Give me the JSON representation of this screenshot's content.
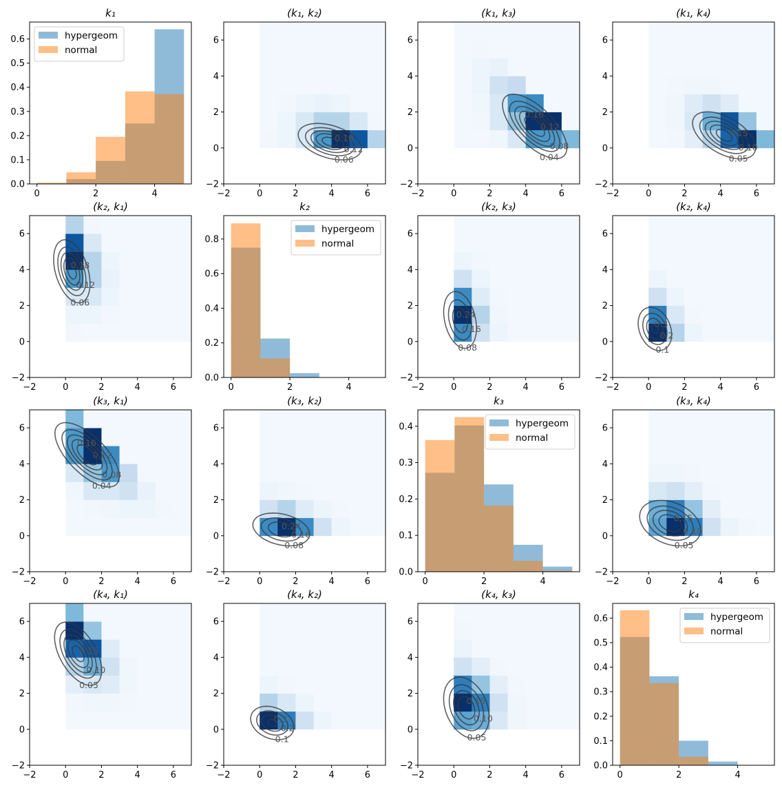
{
  "chart_data": {
    "type": "pairplot",
    "variables": [
      "k1",
      "k2",
      "k3",
      "k4"
    ],
    "legend": [
      "hypergeom",
      "normal"
    ],
    "colors": {
      "hypergeom": "#1f77b4",
      "normal": "#ff7f0e",
      "contour": "#3a3a3a",
      "frame": "#000000"
    },
    "colormap": [
      "#f7fbff",
      "#deebf7",
      "#c6dbef",
      "#9ecae1",
      "#6baed6",
      "#4292c6",
      "#2171b5",
      "#08519c",
      "#08306b"
    ],
    "titles": [
      [
        "k₁",
        "(k₁, k₂)",
        "(k₁, k₃)",
        "(k₁, k₄)"
      ],
      [
        "(k₂, k₁)",
        "k₂",
        "(k₂, k₃)",
        "(k₂, k₄)"
      ],
      [
        "(k₃, k₁)",
        "(k₃, k₂)",
        "k₃",
        "(k₃, k₄)"
      ],
      [
        "(k₄, k₁)",
        "(k₄, k₂)",
        "(k₄, k₃)",
        "k₄"
      ]
    ],
    "histograms": [
      {
        "bin_edges": [
          0,
          1,
          2,
          3,
          4,
          5
        ],
        "hypergeom": [
          0.002,
          0.02,
          0.095,
          0.25,
          0.64
        ],
        "normal": [
          0.005,
          0.048,
          0.195,
          0.383,
          0.372
        ],
        "xlim": [
          -0.25,
          5.25
        ],
        "ylim": [
          0,
          0.67
        ],
        "xticks": [
          "0",
          "2",
          "4"
        ],
        "yticks": [
          "0.0",
          "0.1",
          "0.2",
          "0.3",
          "0.4",
          "0.5",
          "0.6"
        ],
        "legend_loc": "upper left"
      },
      {
        "bin_edges": [
          0,
          1,
          2,
          3,
          4,
          5
        ],
        "hypergeom": [
          0.75,
          0.225,
          0.025,
          0,
          0
        ],
        "normal": [
          0.89,
          0.11,
          0,
          0,
          0
        ],
        "xlim": [
          -0.25,
          5.25
        ],
        "ylim": [
          0,
          0.935
        ],
        "xticks": [
          "0",
          "2",
          "4"
        ],
        "yticks": [
          "0.0",
          "0.2",
          "0.4",
          "0.6",
          "0.8"
        ],
        "legend_loc": "upper right"
      },
      {
        "bin_edges": [
          0,
          1,
          2,
          3,
          4,
          5
        ],
        "hypergeom": [
          0.272,
          0.402,
          0.24,
          0.074,
          0.014
        ],
        "normal": [
          0.362,
          0.425,
          0.182,
          0.03,
          0.003
        ],
        "xlim": [
          -0.25,
          5.25
        ],
        "ylim": [
          0,
          0.445
        ],
        "xticks": [
          "0",
          "2",
          "4"
        ],
        "yticks": [
          "0.0",
          "0.1",
          "0.2",
          "0.3",
          "0.4"
        ],
        "legend_loc": "upper right"
      },
      {
        "bin_edges": [
          0,
          1,
          2,
          3,
          4,
          5
        ],
        "hypergeom": [
          0.523,
          0.363,
          0.1,
          0.015,
          0
        ],
        "normal": [
          0.632,
          0.335,
          0.035,
          0,
          0
        ],
        "xlim": [
          -0.25,
          5.25
        ],
        "ylim": [
          0,
          0.66
        ],
        "xticks": [
          "0",
          "2",
          "4"
        ],
        "yticks": [
          "0.0",
          "0.1",
          "0.2",
          "0.3",
          "0.4",
          "0.5",
          "0.6"
        ],
        "legend_loc": "upper right"
      }
    ],
    "pair_xlim": [
      -2,
      7
    ],
    "pair_ylim": [
      -2,
      7
    ],
    "pair_ticks": [
      "−2",
      "0",
      "2",
      "4",
      "6"
    ],
    "pairs": {
      "k1,k2": {
        "heatmap": [
          [
            0.03,
            0.05,
            0.15,
            0.6,
            1.0,
            0.85,
            0.3
          ],
          [
            0.02,
            0.05,
            0.15,
            0.3,
            0.3,
            0.15,
            0.03
          ],
          [
            0.02,
            0.03,
            0.05,
            0.07,
            0.05,
            0.02,
            0.02
          ],
          [
            0.02,
            0.02,
            0.02,
            0.02,
            0.02,
            0.02,
            0.02
          ],
          [
            0.02,
            0.02,
            0.02,
            0.02,
            0.02,
            0.02,
            0.02
          ],
          [
            0.02,
            0.02,
            0.02,
            0.02,
            0.02,
            0.02,
            0.02
          ],
          [
            0.02,
            0.02,
            0.02,
            0.02,
            0.02,
            0.02,
            0.02
          ]
        ],
        "normal": {
          "mean": [
            3.9,
            0.35
          ],
          "cov": [
            [
              0.9,
              -0.2
            ],
            [
              -0.2,
              0.3
            ]
          ]
        },
        "levels": [
          0.06,
          0.12,
          0.18,
          0.24,
          0.3
        ],
        "labels": [
          "0.06",
          "0.12",
          "0.18"
        ]
      },
      "k1,k3": {
        "heatmap": [
          [
            0.02,
            0.02,
            0.04,
            0.15,
            0.6,
            0.6,
            0.45
          ],
          [
            0.02,
            0.03,
            0.15,
            0.4,
            1.0,
            1.0,
            0.02
          ],
          [
            0.02,
            0.04,
            0.15,
            0.6,
            0.65,
            0.02,
            0.02
          ],
          [
            0.02,
            0.05,
            0.2,
            0.25,
            0.02,
            0.02,
            0.02
          ],
          [
            0.02,
            0.05,
            0.07,
            0.02,
            0.02,
            0.02,
            0.02
          ],
          [
            0.02,
            0.03,
            0.02,
            0.02,
            0.02,
            0.02,
            0.02
          ],
          [
            0.02,
            0.02,
            0.02,
            0.02,
            0.02,
            0.02,
            0.02
          ]
        ],
        "normal": {
          "mean": [
            4.5,
            1.2
          ],
          "cov": [
            [
              0.9,
              -0.6
            ],
            [
              -0.6,
              0.9
            ]
          ]
        },
        "levels": [
          0.04,
          0.08,
          0.12,
          0.16,
          0.2
        ],
        "labels": [
          "0.04",
          "0.08",
          "0.12",
          "0.16"
        ]
      },
      "k1,k4": {
        "heatmap": [
          [
            0.02,
            0.03,
            0.1,
            0.3,
            0.8,
            1.0,
            0.45
          ],
          [
            0.02,
            0.04,
            0.15,
            0.5,
            0.85,
            0.4,
            0.02
          ],
          [
            0.02,
            0.04,
            0.12,
            0.2,
            0.12,
            0.02,
            0.02
          ],
          [
            0.02,
            0.03,
            0.04,
            0.04,
            0.02,
            0.02,
            0.02
          ],
          [
            0.02,
            0.02,
            0.02,
            0.02,
            0.02,
            0.02,
            0.02
          ],
          [
            0.02,
            0.02,
            0.02,
            0.02,
            0.02,
            0.02,
            0.02
          ],
          [
            0.02,
            0.02,
            0.02,
            0.02,
            0.02,
            0.02,
            0.02
          ]
        ],
        "normal": {
          "mean": [
            4.2,
            0.7
          ],
          "cov": [
            [
              0.9,
              -0.35
            ],
            [
              -0.35,
              0.5
            ]
          ]
        },
        "levels": [
          0.05,
          0.1,
          0.15,
          0.2,
          0.25
        ],
        "labels": [
          "0.05",
          "0.10",
          "0.15"
        ]
      },
      "k2,k3": {
        "heatmap": [
          [
            0.65,
            0.2,
            0.05,
            0.02,
            0.02,
            0.02,
            0.02
          ],
          [
            1.0,
            0.3,
            0.04,
            0.02,
            0.02,
            0.02,
            0.02
          ],
          [
            0.65,
            0.12,
            0.03,
            0.02,
            0.02,
            0.02,
            0.02
          ],
          [
            0.2,
            0.05,
            0.02,
            0.02,
            0.02,
            0.02,
            0.02
          ],
          [
            0.05,
            0.03,
            0.02,
            0.02,
            0.02,
            0.02,
            0.02
          ],
          [
            0.02,
            0.02,
            0.02,
            0.02,
            0.02,
            0.02,
            0.02
          ],
          [
            0.02,
            0.02,
            0.02,
            0.02,
            0.02,
            0.02,
            0.02
          ]
        ],
        "normal": {
          "mean": [
            0.35,
            1.2
          ],
          "cov": [
            [
              0.3,
              -0.15
            ],
            [
              -0.15,
              0.9
            ]
          ]
        },
        "levels": [
          0.08,
          0.16,
          0.24,
          0.32
        ],
        "labels": [
          "0.08",
          "0.16",
          "0.24"
        ]
      },
      "k2,k4": {
        "heatmap": [
          [
            1.0,
            0.3,
            0.05,
            0.02,
            0.02,
            0.02,
            0.02
          ],
          [
            0.7,
            0.15,
            0.03,
            0.02,
            0.02,
            0.02,
            0.02
          ],
          [
            0.2,
            0.05,
            0.02,
            0.02,
            0.02,
            0.02,
            0.02
          ],
          [
            0.05,
            0.02,
            0.02,
            0.02,
            0.02,
            0.02,
            0.02
          ],
          [
            0.02,
            0.02,
            0.02,
            0.02,
            0.02,
            0.02,
            0.02
          ],
          [
            0.02,
            0.02,
            0.02,
            0.02,
            0.02,
            0.02,
            0.02
          ],
          [
            0.02,
            0.02,
            0.02,
            0.02,
            0.02,
            0.02,
            0.02
          ]
        ],
        "normal": {
          "mean": [
            0.35,
            0.7
          ],
          "cov": [
            [
              0.3,
              -0.1
            ],
            [
              -0.1,
              0.5
            ]
          ]
        },
        "levels": [
          0.1,
          0.2,
          0.3,
          0.4
        ],
        "labels": [
          "0.1",
          "0.2",
          "0.3"
        ]
      },
      "k3,k4": {
        "heatmap": [
          [
            0.55,
            1.0,
            0.7,
            0.2,
            0.06,
            0.03,
            0.02
          ],
          [
            0.5,
            0.7,
            0.4,
            0.1,
            0.02,
            0.02,
            0.02
          ],
          [
            0.15,
            0.2,
            0.1,
            0.03,
            0.02,
            0.02,
            0.02
          ],
          [
            0.04,
            0.04,
            0.03,
            0.02,
            0.02,
            0.02,
            0.02
          ],
          [
            0.02,
            0.02,
            0.02,
            0.02,
            0.02,
            0.02,
            0.02
          ],
          [
            0.02,
            0.02,
            0.02,
            0.02,
            0.02,
            0.02,
            0.02
          ],
          [
            0.02,
            0.02,
            0.02,
            0.02,
            0.02,
            0.02,
            0.02
          ]
        ],
        "normal": {
          "mean": [
            1.2,
            0.7
          ],
          "cov": [
            [
              0.9,
              -0.2
            ],
            [
              -0.2,
              0.5
            ]
          ]
        },
        "levels": [
          0.05,
          0.1,
          0.15,
          0.2
        ],
        "labels": [
          "0.05",
          "0.10",
          "0.15"
        ]
      }
    }
  }
}
